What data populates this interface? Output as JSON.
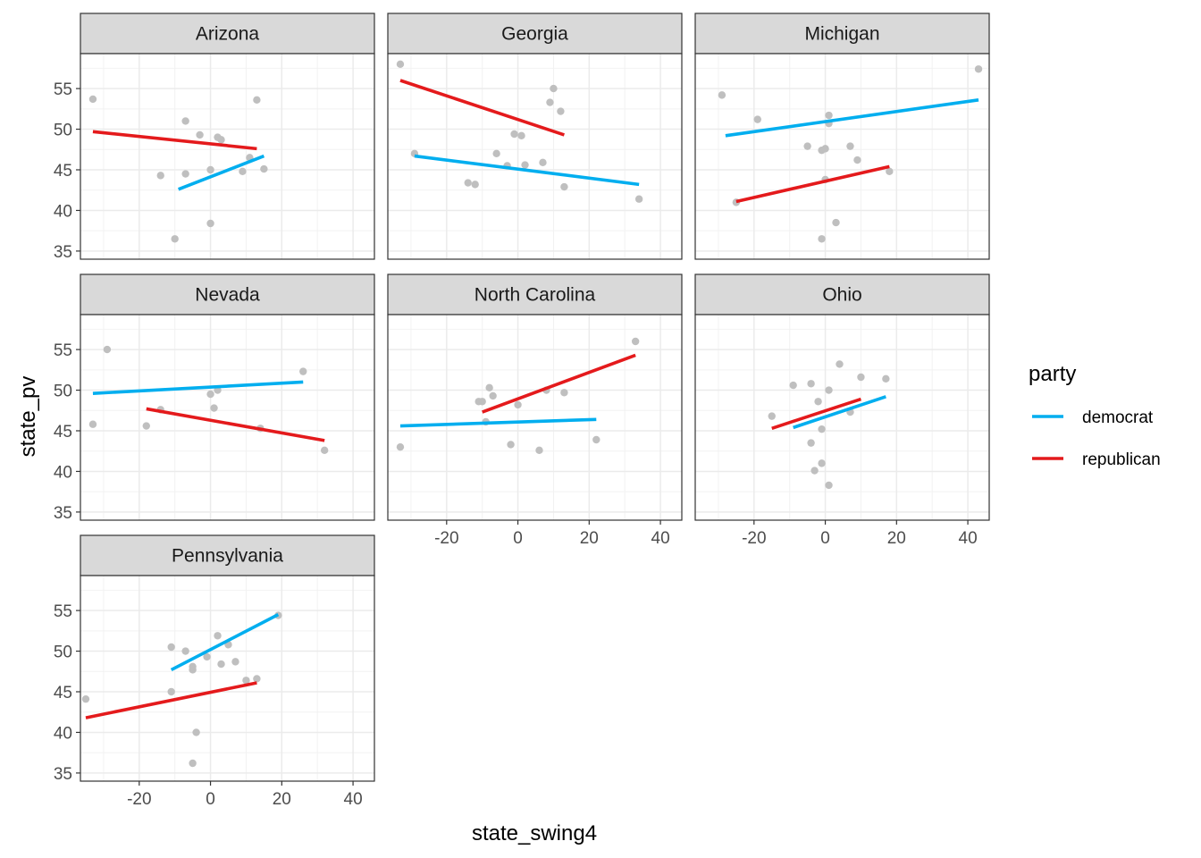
{
  "chart_data": {
    "type": "scatter",
    "xlabel": "state_swing4",
    "ylabel": "state_pv",
    "xlim": [
      -36.5,
      46
    ],
    "ylim": [
      34,
      59.3
    ],
    "x_ticks": [
      -20,
      0,
      20,
      40
    ],
    "y_ticks": [
      35,
      40,
      45,
      50,
      55
    ],
    "grid": true,
    "legend": {
      "title": "party",
      "position": "right",
      "entries": [
        {
          "label": "democrat",
          "color": "#00AEEF"
        },
        {
          "label": "republican",
          "color": "#E41A1C"
        }
      ]
    },
    "point_color": "#BFBFBF",
    "panels": [
      {
        "name": "Arizona",
        "points": [
          [
            -33,
            53.7
          ],
          [
            -14,
            44.3
          ],
          [
            -10,
            36.5
          ],
          [
            -7,
            51
          ],
          [
            -7,
            44.5
          ],
          [
            -3,
            49.3
          ],
          [
            0,
            45
          ],
          [
            0,
            38.4
          ],
          [
            2,
            49
          ],
          [
            3,
            48.7
          ],
          [
            9,
            44.8
          ],
          [
            11,
            46.5
          ],
          [
            13,
            53.6
          ],
          [
            15,
            45.1
          ]
        ],
        "lines": [
          {
            "party": "republican",
            "x": [
              -33,
              13
            ],
            "y": [
              49.7,
              47.6
            ]
          },
          {
            "party": "democrat",
            "x": [
              -9,
              15
            ],
            "y": [
              42.6,
              46.7
            ]
          }
        ]
      },
      {
        "name": "Georgia",
        "points": [
          [
            -33,
            58
          ],
          [
            -29,
            47
          ],
          [
            -14,
            43.4
          ],
          [
            -12,
            43.2
          ],
          [
            -6,
            47
          ],
          [
            -3,
            45.5
          ],
          [
            -1,
            49.4
          ],
          [
            1,
            49.2
          ],
          [
            2,
            45.6
          ],
          [
            7,
            45.9
          ],
          [
            9,
            53.3
          ],
          [
            10,
            55
          ],
          [
            12,
            52.2
          ],
          [
            13,
            42.9
          ],
          [
            34,
            41.4
          ]
        ],
        "lines": [
          {
            "party": "republican",
            "x": [
              -33,
              13
            ],
            "y": [
              56,
              49.3
            ]
          },
          {
            "party": "democrat",
            "x": [
              -29,
              34
            ],
            "y": [
              46.7,
              43.2
            ]
          }
        ]
      },
      {
        "name": "Michigan",
        "points": [
          [
            -29,
            54.2
          ],
          [
            -19,
            51.2
          ],
          [
            -25,
            41
          ],
          [
            -5,
            47.9
          ],
          [
            -1,
            36.5
          ],
          [
            -1,
            47.4
          ],
          [
            0,
            47.6
          ],
          [
            0,
            43.8
          ],
          [
            1,
            50.7
          ],
          [
            1,
            51.7
          ],
          [
            3,
            38.5
          ],
          [
            7,
            47.9
          ],
          [
            9,
            46.2
          ],
          [
            18,
            44.8
          ],
          [
            43,
            57.4
          ]
        ],
        "lines": [
          {
            "party": "democrat",
            "x": [
              -28,
              43
            ],
            "y": [
              49.2,
              53.6
            ]
          },
          {
            "party": "republican",
            "x": [
              -25,
              18
            ],
            "y": [
              41.1,
              45.4
            ]
          }
        ]
      },
      {
        "name": "Nevada",
        "points": [
          [
            -33,
            45.8
          ],
          [
            -29,
            55
          ],
          [
            -18,
            45.6
          ],
          [
            -14,
            47.6
          ],
          [
            0,
            49.5
          ],
          [
            1,
            47.8
          ],
          [
            2,
            50
          ],
          [
            14,
            45.3
          ],
          [
            26,
            52.3
          ],
          [
            32,
            42.6
          ]
        ],
        "lines": [
          {
            "party": "democrat",
            "x": [
              -33,
              26
            ],
            "y": [
              49.6,
              51
            ]
          },
          {
            "party": "republican",
            "x": [
              -18,
              32
            ],
            "y": [
              47.7,
              43.8
            ]
          }
        ]
      },
      {
        "name": "North Carolina",
        "points": [
          [
            -33,
            43
          ],
          [
            -11,
            48.6
          ],
          [
            -10,
            48.6
          ],
          [
            -9,
            46.1
          ],
          [
            -8,
            50.3
          ],
          [
            -7,
            49.3
          ],
          [
            -2,
            43.3
          ],
          [
            0,
            48.2
          ],
          [
            6,
            42.6
          ],
          [
            8,
            50
          ],
          [
            13,
            49.7
          ],
          [
            22,
            43.9
          ],
          [
            33,
            56
          ]
        ],
        "lines": [
          {
            "party": "democrat",
            "x": [
              -33,
              22
            ],
            "y": [
              45.6,
              46.4
            ]
          },
          {
            "party": "republican",
            "x": [
              -10,
              33
            ],
            "y": [
              47.3,
              54.3
            ]
          }
        ]
      },
      {
        "name": "Ohio",
        "points": [
          [
            -15,
            46.8
          ],
          [
            -9,
            50.6
          ],
          [
            -4,
            43.5
          ],
          [
            -4,
            50.8
          ],
          [
            -3,
            40.1
          ],
          [
            -2,
            48.6
          ],
          [
            -1,
            45.2
          ],
          [
            -1,
            41
          ],
          [
            1,
            50
          ],
          [
            1,
            38.3
          ],
          [
            4,
            53.2
          ],
          [
            7,
            47.3
          ],
          [
            10,
            51.6
          ],
          [
            17,
            51.4
          ]
        ],
        "lines": [
          {
            "party": "republican",
            "x": [
              -15,
              10
            ],
            "y": [
              45.3,
              48.9
            ]
          },
          {
            "party": "democrat",
            "x": [
              -9,
              17
            ],
            "y": [
              45.4,
              49.2
            ]
          }
        ]
      },
      {
        "name": "Pennsylvania",
        "points": [
          [
            -35,
            44.1
          ],
          [
            -11,
            50.5
          ],
          [
            -11,
            45
          ],
          [
            -7,
            50
          ],
          [
            -5,
            47.7
          ],
          [
            -5,
            48.1
          ],
          [
            -4,
            40
          ],
          [
            -5,
            36.2
          ],
          [
            -1,
            49.3
          ],
          [
            2,
            51.9
          ],
          [
            3,
            48.4
          ],
          [
            5,
            50.8
          ],
          [
            7,
            48.7
          ],
          [
            10,
            46.4
          ],
          [
            13,
            46.6
          ],
          [
            19,
            54.4
          ]
        ],
        "lines": [
          {
            "party": "democrat",
            "x": [
              -11,
              19
            ],
            "y": [
              47.7,
              54.5
            ]
          },
          {
            "party": "republican",
            "x": [
              -35,
              13
            ],
            "y": [
              41.8,
              46.1
            ]
          }
        ]
      }
    ]
  }
}
